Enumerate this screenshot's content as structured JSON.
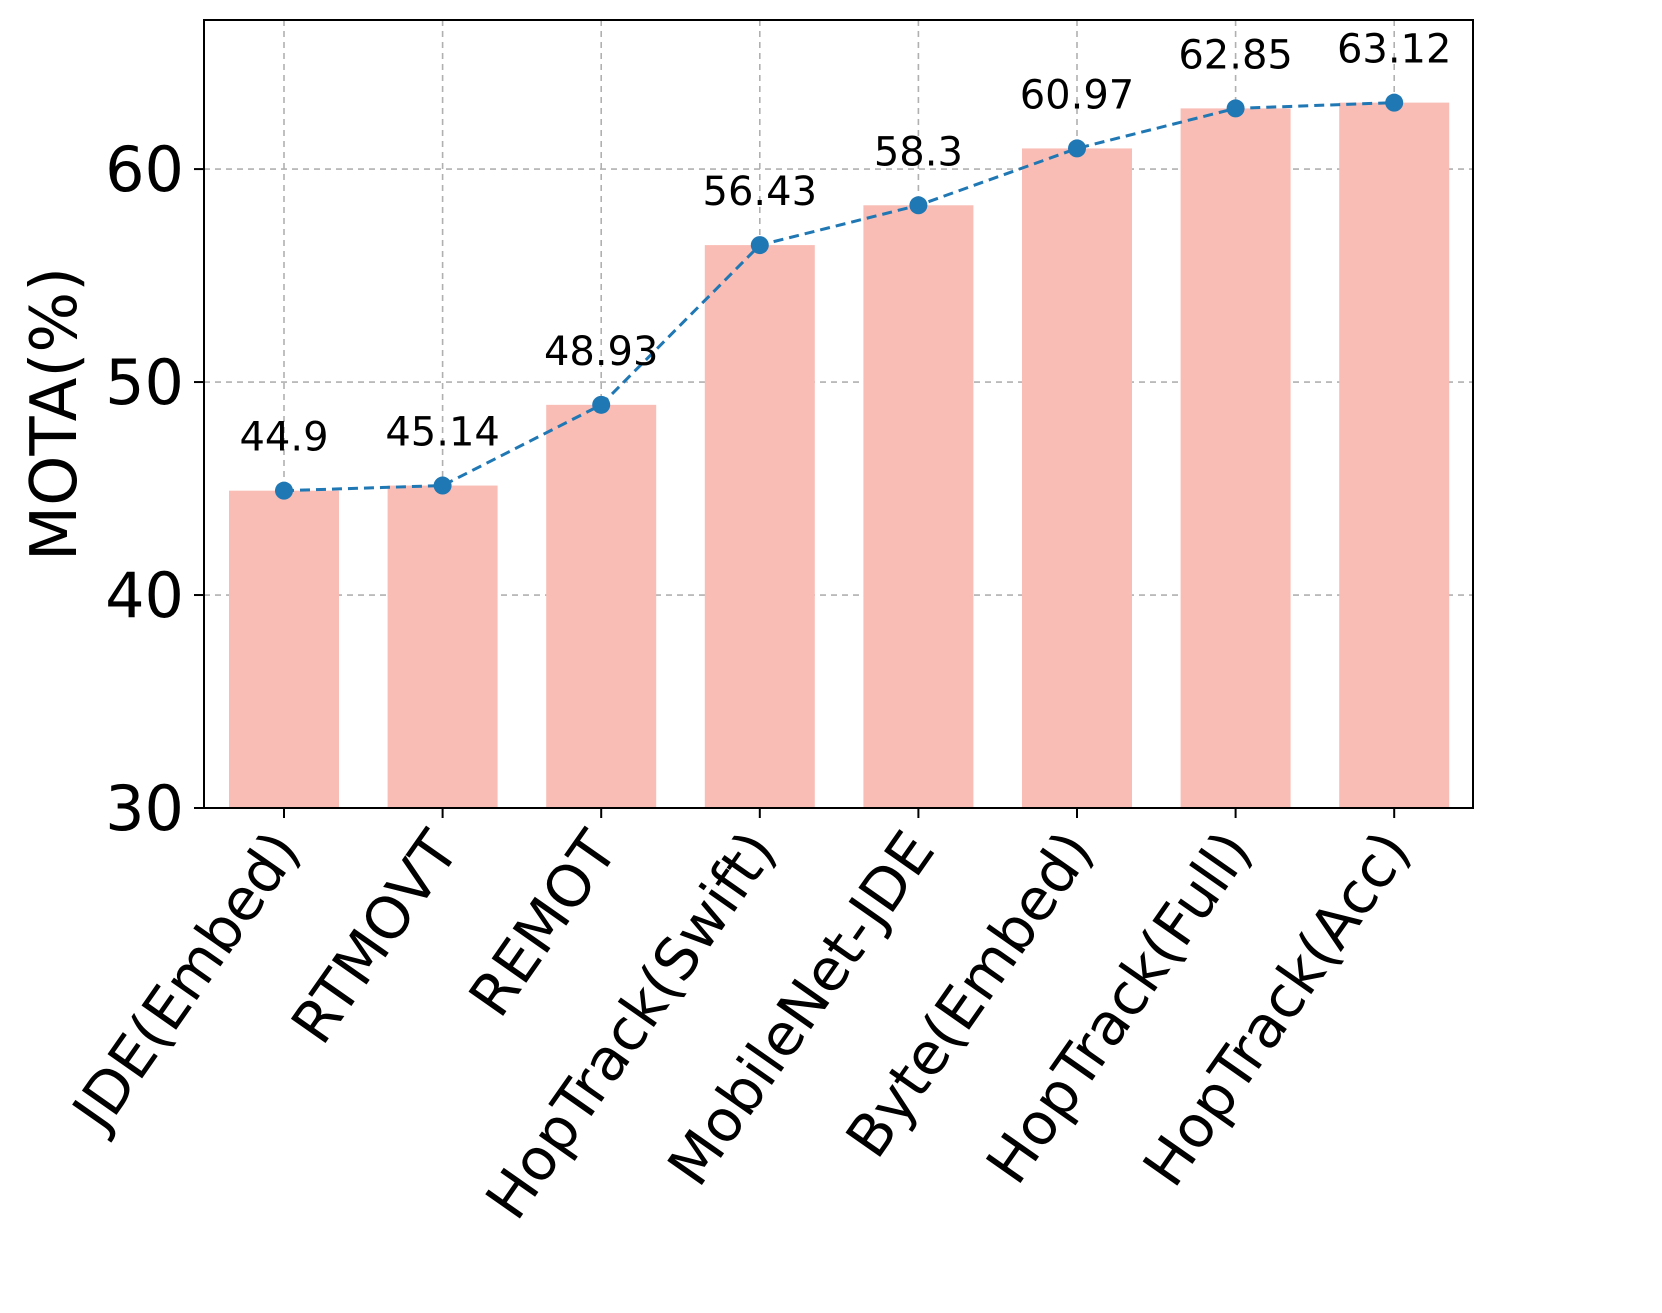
{
  "chart_data": {
    "type": "bar",
    "ylabel": "MOTA(%)",
    "xlabel": "",
    "ylim": [
      30,
      67
    ],
    "yticks": [
      "30",
      "40",
      "50",
      "60"
    ],
    "grid": true,
    "categories": [
      "JDE(Embed)",
      "RTMOVT",
      "REMOT",
      "HopTrack(Swift)",
      "MobileNet-JDE",
      "Byte(Embed)",
      "HopTrack(Full)",
      "HopTrack(Acc)"
    ],
    "values": [
      44.9,
      45.14,
      48.93,
      56.43,
      58.3,
      60.97,
      62.85,
      63.12
    ],
    "data_labels": [
      "44.9",
      "45.14",
      "48.93",
      "56.43",
      "58.3",
      "60.97",
      "62.85",
      "63.12"
    ],
    "overlay": "dashed line with markers connecting bar tops",
    "colors": {
      "bar": "#f9bdb5",
      "line": "#1f77b4",
      "grid": "#b0b0b0",
      "axis": "#000000"
    }
  }
}
